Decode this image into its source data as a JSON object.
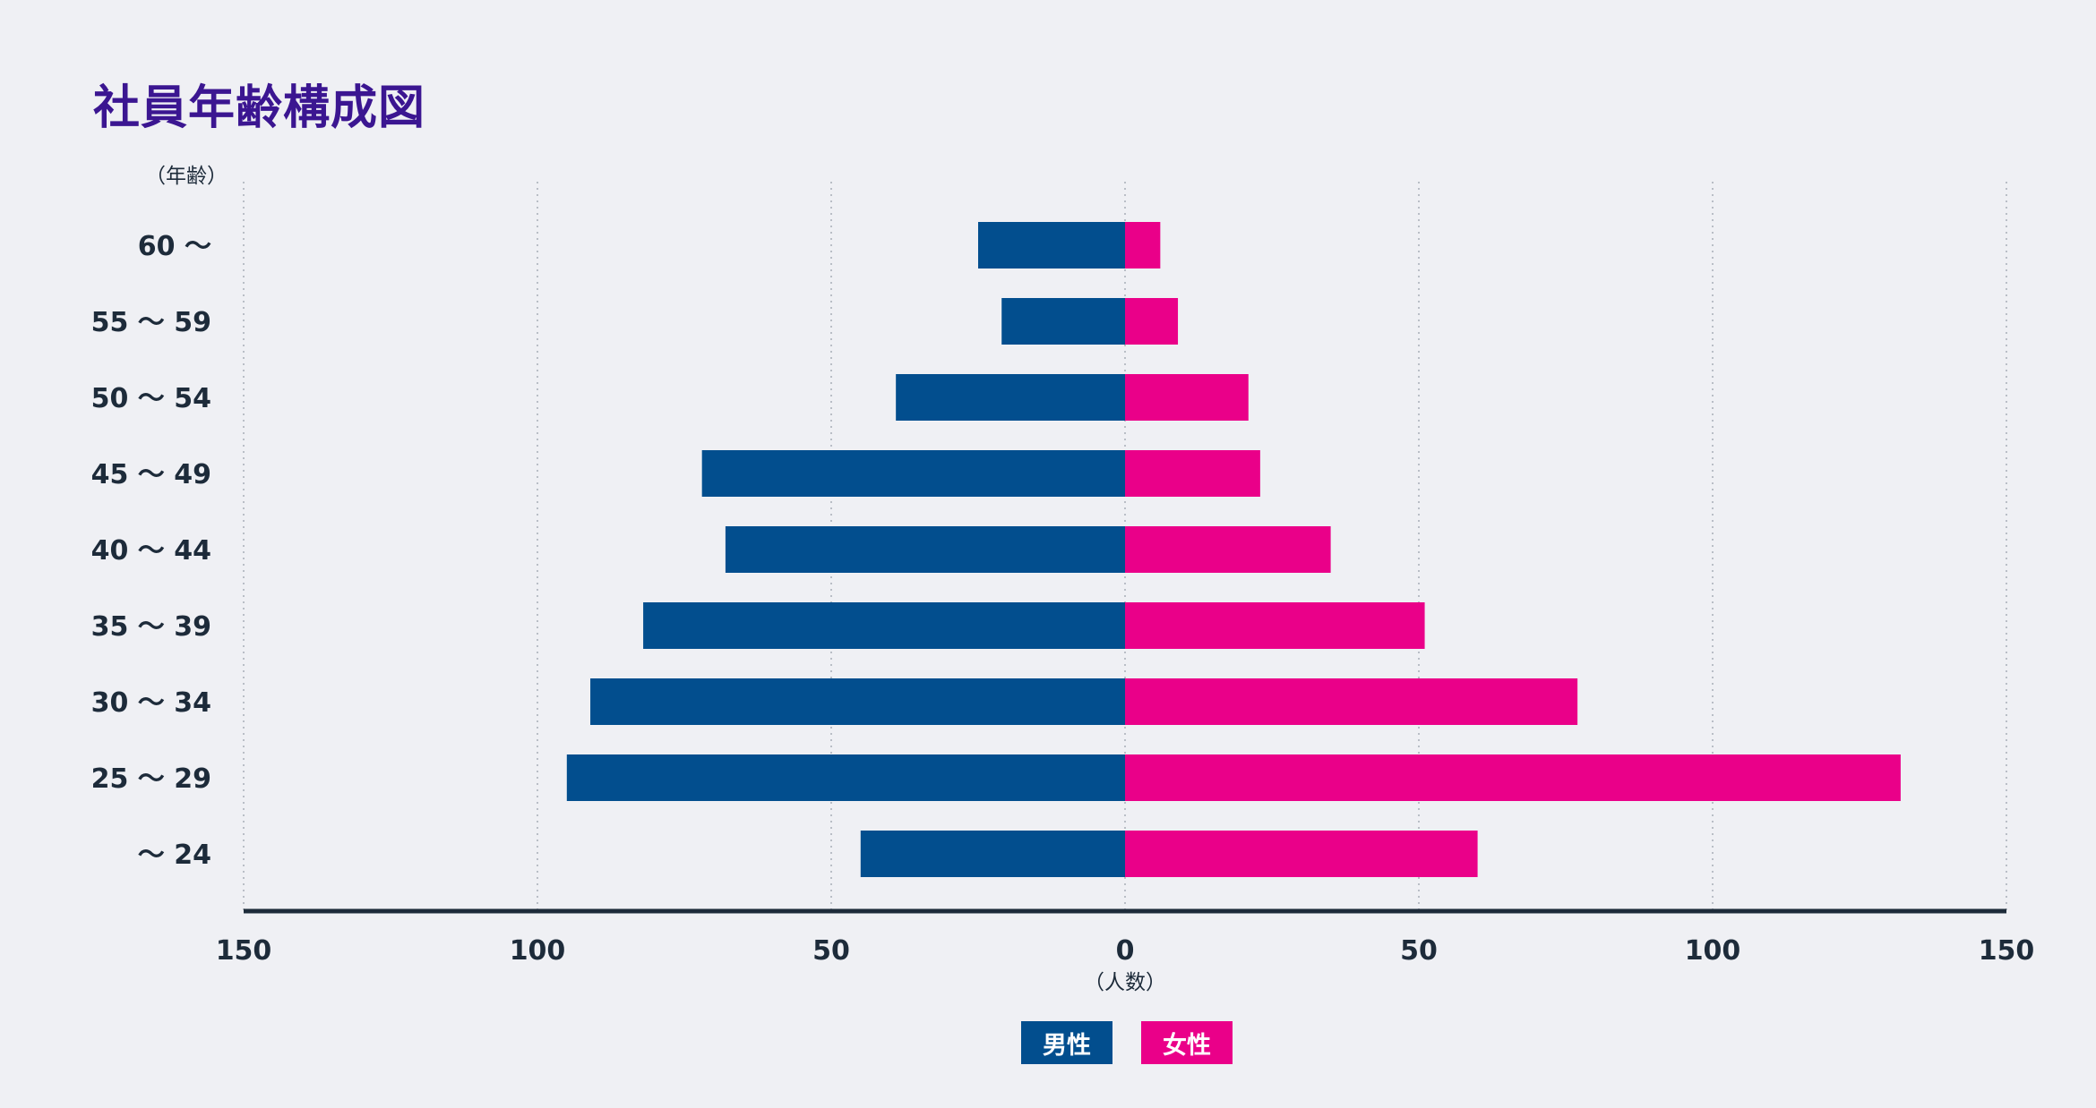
{
  "title": "社員年齢構成図",
  "colors": {
    "male": "#024e8e",
    "female": "#ea0089",
    "axis": "#1d2b3a",
    "grid": "#a7adb6",
    "text": "#1d2b3a",
    "title": "#3b1691",
    "background": "#eff0f4"
  },
  "chart_data": {
    "type": "bar",
    "orientation": "horizontal",
    "title": "社員年齢構成図",
    "ylabel": "（年齢）",
    "xlabel": "（人数）",
    "xlim": [
      -150,
      150
    ],
    "x_ticks": [
      -150,
      -100,
      -50,
      0,
      50,
      100,
      150
    ],
    "x_tick_labels": [
      "150",
      "100",
      "50",
      "0",
      "50",
      "100",
      "150"
    ],
    "categories": [
      "60 〜",
      "55 〜 59",
      "50 〜 54",
      "45 〜 49",
      "40 〜 44",
      "35 〜 39",
      "30 〜 34",
      "25 〜 29",
      "〜 24"
    ],
    "series": [
      {
        "name": "男性",
        "key": "male",
        "values": [
          25,
          21,
          39,
          72,
          68,
          82,
          91,
          95,
          45
        ]
      },
      {
        "name": "女性",
        "key": "female",
        "values": [
          6,
          9,
          21,
          23,
          35,
          51,
          77,
          132,
          60
        ]
      }
    ],
    "grid": true,
    "legend": "bottom-center"
  }
}
